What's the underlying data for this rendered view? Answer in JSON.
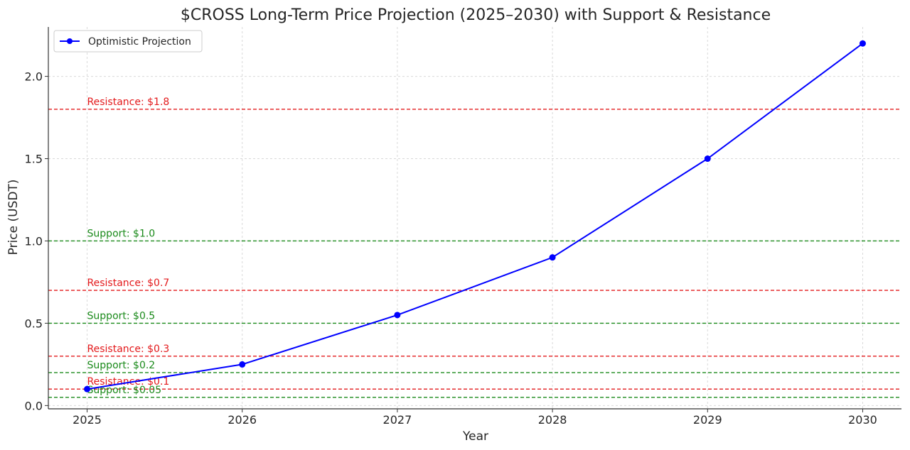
{
  "chart_data": {
    "type": "line",
    "title": "$CROSS Long-Term Price Projection (2025–2030) with Support & Resistance",
    "xlabel": "Year",
    "ylabel": "Price (USDT)",
    "x": [
      2025,
      2026,
      2027,
      2028,
      2029,
      2030
    ],
    "xlim": [
      2024.75,
      2030.25
    ],
    "ylim": [
      -0.02,
      2.3
    ],
    "yticks": [
      0.0,
      0.5,
      1.0,
      1.5,
      2.0
    ],
    "yticklabels": [
      "0.0",
      "0.5",
      "1.0",
      "1.5",
      "2.0"
    ],
    "xticklabels": [
      "2025",
      "2026",
      "2027",
      "2028",
      "2029",
      "2030"
    ],
    "grid": true,
    "legend_position": "top-left",
    "series": [
      {
        "name": "Optimistic Projection",
        "color": "#0000ff",
        "values": [
          0.1,
          0.25,
          0.55,
          0.9,
          1.5,
          2.2
        ]
      }
    ],
    "reference_lines": [
      {
        "kind": "resistance",
        "value": 1.8,
        "label": "Resistance: $1.8",
        "color": "#e31a1c"
      },
      {
        "kind": "support",
        "value": 1.0,
        "label": "Support: $1.0",
        "color": "#1a8a1a"
      },
      {
        "kind": "resistance",
        "value": 0.7,
        "label": "Resistance: $0.7",
        "color": "#e31a1c"
      },
      {
        "kind": "support",
        "value": 0.5,
        "label": "Support: $0.5",
        "color": "#1a8a1a"
      },
      {
        "kind": "resistance",
        "value": 0.3,
        "label": "Resistance: $0.3",
        "color": "#e31a1c"
      },
      {
        "kind": "support",
        "value": 0.2,
        "label": "Support: $0.2",
        "color": "#1a8a1a"
      },
      {
        "kind": "resistance",
        "value": 0.1,
        "label": "Resistance: $0.1",
        "color": "#e31a1c"
      },
      {
        "kind": "support",
        "value": 0.05,
        "label": "Support: $0.05",
        "color": "#1a8a1a"
      }
    ]
  }
}
